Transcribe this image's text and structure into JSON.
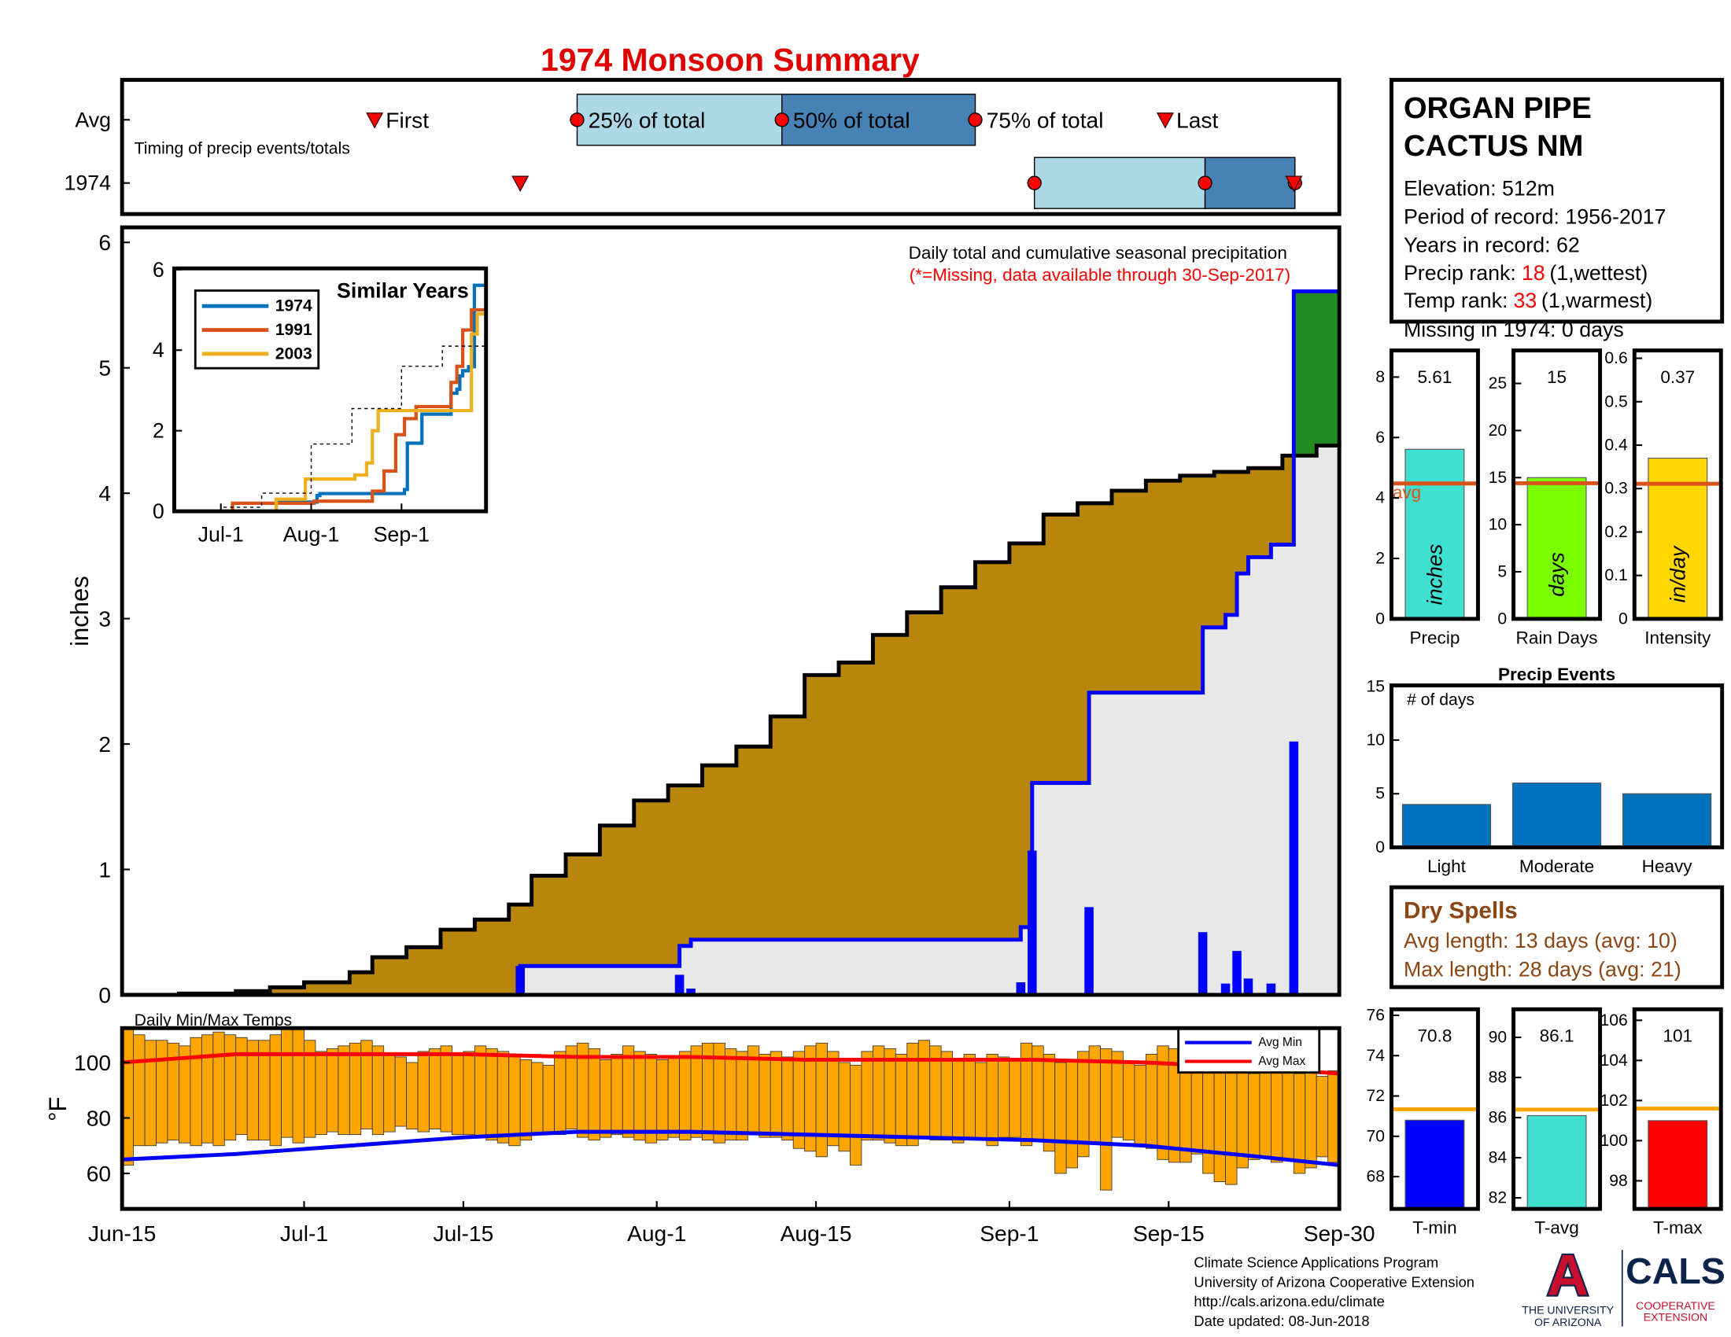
{
  "chart_data": [
    {
      "type": "timeline",
      "title": "1974 Monsoon Summary",
      "subtitle": "Timing of precip events/totals",
      "marker_labels": [
        "First",
        "25% of total",
        "50% of total",
        "75% of total",
        "Last"
      ],
      "xlim": [
        0,
        107
      ],
      "series": [
        {
          "name": "Avg",
          "values": [
            22.2,
            40,
            58,
            75,
            91.7
          ]
        },
        {
          "name": "1974",
          "values": [
            35,
            80.2,
            95.2,
            103.1,
            103
          ]
        }
      ],
      "box_colors": [
        "#add8e6",
        "#4682b4"
      ],
      "marker_color": "#ff0000"
    },
    {
      "type": "cumulative",
      "annotations": [
        "Daily total and cumulative seasonal precipitation",
        "(*=Missing, data available through 30-Sep-2017)"
      ],
      "annotation_colors": [
        "#000000",
        "#ff0000"
      ],
      "ylabel": "inches",
      "xlim": [
        0,
        107
      ],
      "ylim": [
        0,
        6.12
      ],
      "yticks": [
        0,
        1,
        2,
        3,
        4,
        5,
        6
      ],
      "surplus_fill": "#228b22",
      "series": [
        {
          "kind": "step",
          "color": "#000000",
          "fill": "#b8860b",
          "x": [
            0,
            5,
            10,
            13,
            16,
            20,
            22,
            25,
            28,
            31,
            34,
            36,
            39,
            42,
            45,
            48,
            51,
            54,
            57,
            60,
            63,
            66,
            69,
            72,
            75,
            78,
            81,
            84,
            87,
            90,
            93,
            96,
            99,
            102,
            105,
            107
          ],
          "values": [
            0,
            0.01,
            0.03,
            0.06,
            0.1,
            0.18,
            0.3,
            0.38,
            0.52,
            0.6,
            0.72,
            0.95,
            1.12,
            1.35,
            1.55,
            1.67,
            1.83,
            1.98,
            2.22,
            2.55,
            2.65,
            2.87,
            3.05,
            3.25,
            3.45,
            3.6,
            3.83,
            3.92,
            4.02,
            4.1,
            4.14,
            4.17,
            4.2,
            4.3,
            4.38,
            4.42
          ]
        },
        {
          "kind": "step",
          "color": "#0000ff",
          "fill": "#e8e8e8",
          "x": [
            0,
            35,
            49,
            50,
            79,
            80,
            85,
            95,
            97,
            98,
            99,
            101,
            103,
            107
          ],
          "values": [
            0,
            0.23,
            0.39,
            0.44,
            0.54,
            1.69,
            2.41,
            2.93,
            3.03,
            3.36,
            3.49,
            3.59,
            5.61,
            5.61
          ]
        },
        {
          "kind": "bar",
          "color": "#0000ff",
          "x": [
            35,
            49,
            50,
            79,
            80,
            85,
            95,
            97,
            98,
            99,
            101,
            103
          ],
          "values": [
            0.23,
            0.16,
            0.05,
            0.1,
            1.15,
            0.7,
            0.5,
            0.09,
            0.35,
            0.13,
            0.09,
            2.02
          ]
        }
      ]
    },
    {
      "type": "line",
      "title": "Similar Years",
      "legend": "upper left",
      "xlim": [
        0,
        107
      ],
      "ylim": [
        0,
        6.03
      ],
      "yticks": [
        0,
        2,
        4,
        6
      ],
      "xticks": [
        {
          "value": 16,
          "label": "Jul-1"
        },
        {
          "value": 47,
          "label": "Aug-1"
        },
        {
          "value": 78,
          "label": "Sep-1"
        }
      ],
      "series": [
        {
          "name": "1974",
          "color": "#0072bd",
          "x": [
            0,
            35,
            49,
            50,
            79,
            80,
            85,
            95,
            97,
            98,
            99,
            101,
            103,
            107
          ],
          "values": [
            0,
            0.23,
            0.39,
            0.44,
            0.54,
            1.69,
            2.41,
            2.93,
            3.03,
            3.36,
            3.49,
            3.59,
            5.61,
            5.61
          ]
        },
        {
          "name": "1991",
          "color": "#d95319",
          "x": [
            0,
            20,
            48,
            68,
            72,
            76,
            79,
            83,
            95,
            97,
            99,
            102,
            107
          ],
          "values": [
            0,
            0.2,
            0.25,
            0.5,
            1.0,
            1.9,
            2.3,
            2.6,
            3.2,
            3.6,
            4.5,
            5.0,
            5.1
          ]
        },
        {
          "name": "2003",
          "color": "#edb120",
          "x": [
            0,
            35,
            45,
            62,
            66,
            68,
            70,
            100,
            102,
            104,
            107
          ],
          "values": [
            0,
            0.3,
            0.8,
            0.9,
            1.2,
            2.0,
            2.5,
            2.5,
            4.4,
            4.9,
            4.9
          ]
        },
        {
          "color": "#000000",
          "dashed": true,
          "x": [
            0,
            16,
            30,
            47,
            61,
            78,
            92,
            107
          ],
          "values": [
            0,
            0.1,
            0.45,
            1.67,
            2.55,
            3.6,
            4.1,
            4.42
          ]
        }
      ]
    },
    {
      "type": "range_bar",
      "title": "Daily Min/Max Temps",
      "ylabel": "°F",
      "legend": "upper right",
      "xlim": [
        0,
        107
      ],
      "ylim": [
        47.2,
        112.4
      ],
      "yticks": [
        60,
        80,
        100
      ],
      "xticks": [
        {
          "value": 0,
          "label": "Jun-15"
        },
        {
          "value": 16,
          "label": "Jul-1"
        },
        {
          "value": 30,
          "label": "Jul-15"
        },
        {
          "value": 47,
          "label": "Aug-1"
        },
        {
          "value": 61,
          "label": "Aug-15"
        },
        {
          "value": 78,
          "label": "Sep-1"
        },
        {
          "value": 92,
          "label": "Sep-15"
        },
        {
          "value": 107,
          "label": "Sep-30"
        }
      ],
      "color": "#ffa500",
      "max": [
        112,
        110,
        108,
        108,
        107,
        106,
        109,
        110,
        111,
        110,
        109,
        108,
        108,
        110,
        112,
        113,
        108,
        104,
        105,
        106,
        107,
        108,
        106,
        103,
        102,
        100,
        104,
        105,
        106,
        103,
        104,
        106,
        105,
        104,
        103,
        101,
        100,
        99,
        104,
        106,
        107,
        105,
        101,
        103,
        106,
        104,
        103,
        101,
        102,
        104,
        106,
        107,
        107,
        105,
        104,
        106,
        103,
        104,
        102,
        104,
        106,
        107,
        104,
        100,
        99,
        104,
        106,
        105,
        103,
        107,
        108,
        106,
        104,
        101,
        103,
        100,
        103,
        102,
        101,
        107,
        106,
        103,
        100,
        101,
        104,
        106,
        105,
        104,
        100,
        99,
        103,
        106,
        105,
        101,
        99,
        97,
        99,
        98,
        97,
        96,
        98,
        99,
        97,
        96,
        98,
        95,
        97,
        98
      ],
      "min": [
        63,
        70,
        70,
        71,
        72,
        71,
        70,
        71,
        70,
        72,
        74,
        72,
        72,
        70,
        73,
        71,
        73,
        74,
        75,
        74,
        74,
        76,
        74,
        75,
        77,
        76,
        75,
        76,
        75,
        74,
        74,
        73,
        72,
        71,
        70,
        72,
        74,
        75,
        74,
        76,
        73,
        72,
        73,
        74,
        73,
        72,
        71,
        72,
        73,
        72,
        73,
        72,
        71,
        72,
        72,
        74,
        73,
        73,
        72,
        69,
        68,
        66,
        70,
        68,
        63,
        72,
        72,
        71,
        70,
        70,
        73,
        72,
        72,
        71,
        73,
        72,
        70,
        73,
        73,
        70,
        72,
        68,
        60,
        62,
        66,
        71,
        54,
        73,
        72,
        70,
        69,
        65,
        64,
        64,
        67,
        60,
        57,
        56,
        62,
        65,
        66,
        64,
        65,
        60,
        62,
        66,
        64,
        66
      ],
      "series": [
        {
          "name": "Avg Min",
          "color": "#0000ff",
          "x": [
            0,
            10,
            20,
            30,
            40,
            50,
            60,
            70,
            80,
            90,
            100,
            107
          ],
          "values": [
            65,
            67,
            70,
            73,
            75,
            75,
            74,
            73,
            72,
            70,
            66,
            63
          ]
        },
        {
          "name": "Avg Max",
          "color": "#ff0000",
          "x": [
            0,
            10,
            20,
            30,
            40,
            50,
            60,
            70,
            80,
            90,
            100,
            107
          ],
          "values": [
            100,
            103,
            103,
            103,
            102,
            102,
            101,
            101,
            101,
            100,
            98,
            96
          ]
        }
      ]
    },
    {
      "type": "bar",
      "categories": [
        "Precip"
      ],
      "values": [
        5.61
      ],
      "unit_label": "inches",
      "color": "#40e0d0",
      "avg": 4.48,
      "avg_label": "avg",
      "avg_color": "#d95319",
      "ylim": [
        0,
        8.88
      ],
      "yticks": [
        0,
        2,
        4,
        6,
        8
      ]
    },
    {
      "type": "bar",
      "categories": [
        "Rain Days"
      ],
      "values": [
        15
      ],
      "unit_label": "days",
      "color": "#7cfc00",
      "avg": 14.4,
      "avg_color": "#d95319",
      "ylim": [
        0,
        28.5
      ],
      "yticks": [
        0,
        5,
        10,
        15,
        20,
        25
      ]
    },
    {
      "type": "bar",
      "categories": [
        "Intensity"
      ],
      "values": [
        0.37
      ],
      "unit_label": "in/day",
      "color": "#ffd700",
      "avg": 0.311,
      "avg_color": "#d95319",
      "ylim": [
        0,
        0.618
      ],
      "yticks": [
        0,
        0.1,
        0.2,
        0.3,
        0.4,
        0.5,
        0.6
      ]
    },
    {
      "type": "bar",
      "title": "Precip Events",
      "annotation": "# of days",
      "categories": [
        "Light",
        "Moderate",
        "Heavy"
      ],
      "values": [
        4,
        6,
        5
      ],
      "color": "#0072bd",
      "ylim": [
        0,
        15.1
      ],
      "yticks": [
        0,
        5,
        10,
        15
      ]
    },
    {
      "type": "bar",
      "categories": [
        "T-min"
      ],
      "values": [
        70.8
      ],
      "color": "#0000ff",
      "avg": 71.34,
      "avg_color": "#ffa500",
      "ylim": [
        66.4,
        76.3
      ],
      "yticks": [
        68,
        70,
        72,
        74,
        76
      ]
    },
    {
      "type": "bar",
      "categories": [
        "T-avg"
      ],
      "values": [
        86.1
      ],
      "color": "#40e0d0",
      "avg": 86.4,
      "avg_color": "#ffa500",
      "ylim": [
        81.45,
        91.4
      ],
      "yticks": [
        82,
        84,
        86,
        88,
        90
      ]
    },
    {
      "type": "bar",
      "categories": [
        "T-max"
      ],
      "values": [
        101
      ],
      "color": "#ff0000",
      "avg": 101.6,
      "avg_color": "#ffa500",
      "ylim": [
        96.6,
        106.55
      ],
      "yticks": [
        98,
        100,
        102,
        104,
        106
      ]
    }
  ],
  "station": {
    "name": [
      "ORGAN PIPE",
      "CACTUS NM"
    ],
    "lines": [
      "Elevation: 512m",
      "Period of record: 1956-2017",
      "Years in record: 62"
    ],
    "ranks": [
      {
        "label": "Precip rank:",
        "value": 18,
        "note": "(1,wettest)"
      },
      {
        "label": "Temp rank:",
        "value": 33,
        "note": "(1,warmest)"
      }
    ],
    "rank_color": "#ff0000",
    "missing": "Missing in 1974: 0 days"
  },
  "dry_spells": {
    "title": "Dry Spells",
    "lines": [
      "Avg length: 13 days (avg: 10)",
      "Max length: 28 days (avg: 21)"
    ],
    "color": "#8b4513"
  },
  "footer": [
    "Climate Science Applications Program",
    "University of Arizona Cooperative Extension",
    "http://cals.arizona.edu/climate",
    "Date updated: 08-Jun-2018"
  ],
  "logo": {
    "letter": "A",
    "university": [
      "THE UNIVERSITY",
      "OF ARIZONA"
    ],
    "cals": "CALS",
    "extension": [
      "COOPERATIVE",
      "EXTENSION"
    ]
  }
}
